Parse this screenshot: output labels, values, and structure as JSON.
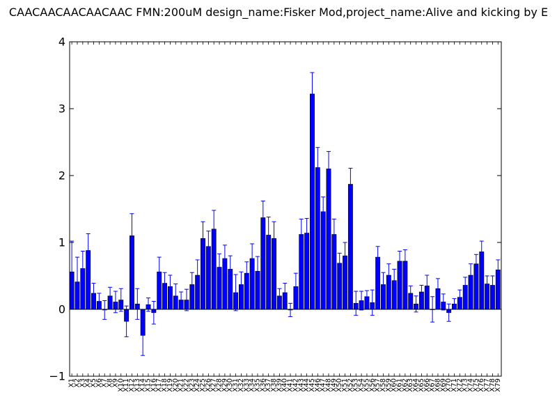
{
  "chart_data": {
    "type": "bar",
    "title": "CAACAACAACAACAAC  FMN:200uM  design_name:Fisker Mod,project_name:Alive and kicking by E",
    "xlabel": "",
    "ylabel": "",
    "ylim": [
      -1,
      4
    ],
    "yticks": [
      -1,
      0,
      1,
      2,
      3,
      4
    ],
    "grid": false,
    "bar_color": "#0000ff",
    "error_color": "#0000ff",
    "categories": [
      "X1",
      "X2",
      "X3",
      "X4",
      "X5",
      "X6",
      "X7",
      "X8",
      "X9",
      "X10",
      "X11",
      "X12",
      "X13",
      "X14",
      "X15",
      "X16",
      "X17",
      "X18",
      "X19",
      "X20",
      "X21",
      "X22",
      "X23",
      "X24",
      "X25",
      "X26",
      "X27",
      "X28",
      "X29",
      "X30",
      "X31",
      "X32",
      "X33",
      "X34",
      "X35",
      "X36",
      "X37",
      "X38",
      "X39",
      "X40",
      "X41",
      "X42",
      "X43",
      "X44",
      "X45",
      "X46",
      "X47",
      "X48",
      "X49",
      "X50",
      "X51",
      "X52",
      "X53",
      "X54",
      "X55",
      "X56",
      "X57",
      "X58",
      "X59",
      "X60",
      "X61",
      "X62",
      "X63",
      "X64",
      "X65",
      "X66",
      "X67",
      "X68",
      "X69",
      "X70",
      "X71",
      "X72",
      "X73",
      "X74",
      "X75",
      "X76",
      "X77",
      "X78",
      "X79"
    ],
    "values": [
      0.56,
      0.41,
      0.61,
      0.88,
      0.24,
      0.12,
      -0.01,
      0.2,
      0.11,
      0.14,
      -0.18,
      1.1,
      0.08,
      -0.39,
      0.07,
      -0.05,
      0.56,
      0.39,
      0.34,
      0.2,
      0.14,
      0.14,
      0.37,
      0.51,
      1.06,
      0.94,
      1.2,
      0.63,
      0.76,
      0.6,
      0.25,
      0.37,
      0.54,
      0.76,
      0.57,
      1.37,
      1.11,
      1.06,
      0.2,
      0.25,
      -0.01,
      0.34,
      1.12,
      1.14,
      3.22,
      2.12,
      1.46,
      2.1,
      1.12,
      0.69,
      0.8,
      1.87,
      0.09,
      0.13,
      0.19,
      0.1,
      0.78,
      0.37,
      0.51,
      0.43,
      0.72,
      0.72,
      0.24,
      0.08,
      0.26,
      0.35,
      0.0,
      0.31,
      0.11,
      -0.05,
      0.08,
      0.18,
      0.36,
      0.51,
      0.68,
      0.86,
      0.38,
      0.36,
      0.59
    ],
    "errors": [
      0.46,
      0.37,
      0.26,
      0.25,
      0.15,
      0.12,
      0.14,
      0.13,
      0.16,
      0.17,
      0.23,
      0.33,
      0.23,
      0.3,
      0.1,
      0.17,
      0.22,
      0.16,
      0.17,
      0.18,
      0.12,
      0.16,
      0.18,
      0.23,
      0.25,
      0.23,
      0.28,
      0.2,
      0.2,
      0.2,
      0.27,
      0.19,
      0.17,
      0.22,
      0.22,
      0.25,
      0.27,
      0.25,
      0.11,
      0.14,
      0.1,
      0.2,
      0.23,
      0.22,
      0.32,
      0.3,
      0.22,
      0.26,
      0.23,
      0.15,
      0.2,
      0.24,
      0.18,
      0.14,
      0.09,
      0.19,
      0.16,
      0.18,
      0.17,
      0.17,
      0.15,
      0.17,
      0.11,
      0.12,
      0.1,
      0.16,
      0.19,
      0.15,
      0.12,
      0.13,
      0.08,
      0.11,
      0.12,
      0.17,
      0.14,
      0.16,
      0.12,
      0.14,
      0.15
    ]
  }
}
